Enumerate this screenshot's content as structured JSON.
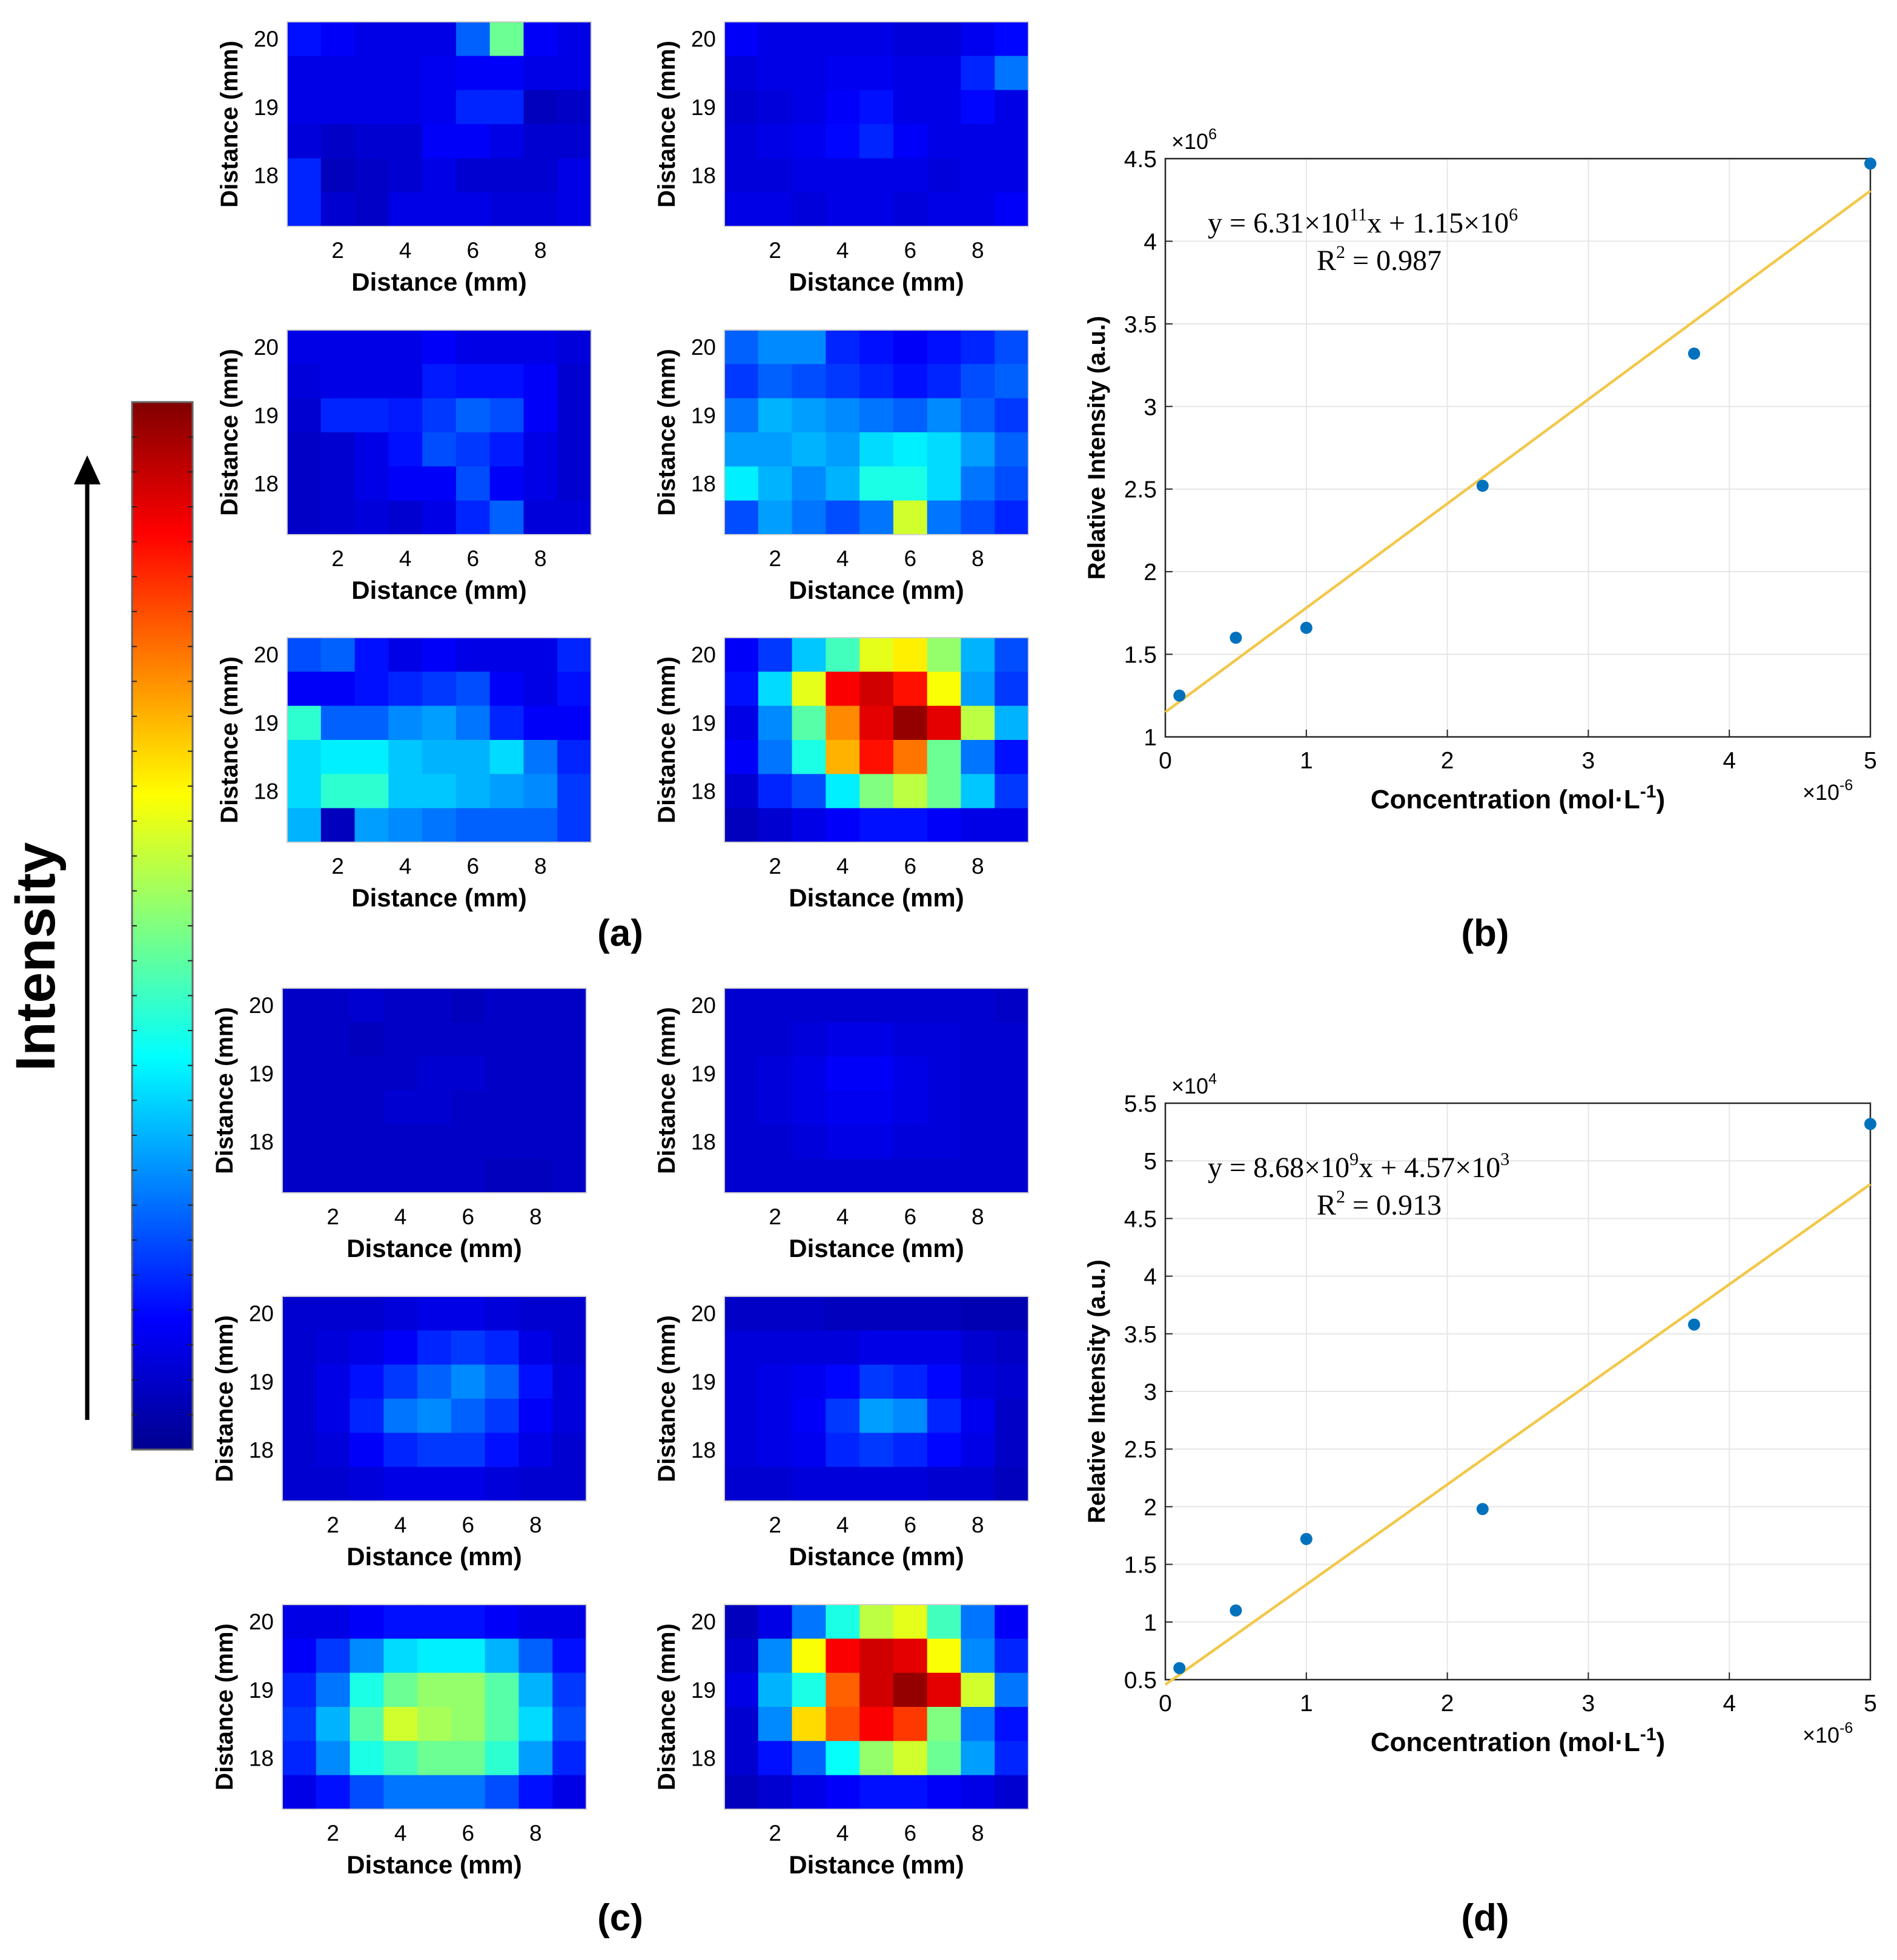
{
  "figure": {
    "intensity_label": "Intensity",
    "panel_labels": [
      "(a)",
      "(b)",
      "(c)",
      "(d)"
    ]
  },
  "chart_data": [
    {
      "panel": "(a)",
      "type": "heatmap",
      "subplot_count": 6,
      "xlabel": "Distance (mm)",
      "ylabel": "Distance (mm)",
      "xticks": [
        2,
        4,
        6,
        8
      ],
      "yticks": [
        18,
        19,
        20
      ],
      "xlim": [
        0.5,
        9.5
      ],
      "ylim": [
        17.25,
        20.25
      ],
      "colormap": "jet",
      "grid_note": "9 columns x 6 rows per map, values normalized 0-1, rows listed top (y=20.25) to bottom (y=17.25)",
      "maps": [
        [
          [
            0.14,
            0.12,
            0.1,
            0.1,
            0.1,
            0.22,
            0.48,
            0.12,
            0.1
          ],
          [
            0.1,
            0.1,
            0.1,
            0.1,
            0.11,
            0.12,
            0.12,
            0.1,
            0.1
          ],
          [
            0.1,
            0.1,
            0.1,
            0.1,
            0.11,
            0.16,
            0.16,
            0.06,
            0.07
          ],
          [
            0.09,
            0.07,
            0.08,
            0.08,
            0.12,
            0.12,
            0.1,
            0.08,
            0.08
          ],
          [
            0.16,
            0.06,
            0.07,
            0.08,
            0.1,
            0.08,
            0.08,
            0.08,
            0.1
          ],
          [
            0.16,
            0.08,
            0.07,
            0.1,
            0.1,
            0.1,
            0.09,
            0.09,
            0.1
          ]
        ],
        [
          [
            0.12,
            0.1,
            0.1,
            0.1,
            0.1,
            0.09,
            0.09,
            0.11,
            0.13
          ],
          [
            0.09,
            0.1,
            0.1,
            0.11,
            0.11,
            0.1,
            0.1,
            0.16,
            0.24
          ],
          [
            0.08,
            0.09,
            0.1,
            0.12,
            0.14,
            0.1,
            0.1,
            0.13,
            0.1
          ],
          [
            0.09,
            0.1,
            0.11,
            0.13,
            0.16,
            0.12,
            0.1,
            0.1,
            0.1
          ],
          [
            0.09,
            0.09,
            0.1,
            0.1,
            0.1,
            0.1,
            0.09,
            0.1,
            0.1
          ],
          [
            0.1,
            0.1,
            0.09,
            0.1,
            0.1,
            0.09,
            0.1,
            0.1,
            0.12
          ]
        ],
        [
          [
            0.1,
            0.1,
            0.1,
            0.1,
            0.12,
            0.1,
            0.1,
            0.1,
            0.09
          ],
          [
            0.09,
            0.1,
            0.1,
            0.1,
            0.15,
            0.14,
            0.14,
            0.12,
            0.08
          ],
          [
            0.08,
            0.16,
            0.16,
            0.15,
            0.18,
            0.22,
            0.2,
            0.12,
            0.08
          ],
          [
            0.07,
            0.08,
            0.1,
            0.14,
            0.2,
            0.18,
            0.15,
            0.1,
            0.08
          ],
          [
            0.07,
            0.08,
            0.1,
            0.12,
            0.12,
            0.2,
            0.12,
            0.1,
            0.08
          ],
          [
            0.07,
            0.08,
            0.09,
            0.08,
            0.1,
            0.16,
            0.22,
            0.09,
            0.09
          ]
        ],
        [
          [
            0.22,
            0.26,
            0.26,
            0.16,
            0.14,
            0.12,
            0.14,
            0.16,
            0.2
          ],
          [
            0.18,
            0.22,
            0.2,
            0.18,
            0.16,
            0.14,
            0.16,
            0.2,
            0.22
          ],
          [
            0.24,
            0.3,
            0.28,
            0.26,
            0.24,
            0.22,
            0.26,
            0.22,
            0.18
          ],
          [
            0.28,
            0.28,
            0.3,
            0.28,
            0.34,
            0.36,
            0.34,
            0.28,
            0.22
          ],
          [
            0.36,
            0.3,
            0.26,
            0.3,
            0.4,
            0.4,
            0.34,
            0.24,
            0.2
          ],
          [
            0.2,
            0.28,
            0.24,
            0.2,
            0.24,
            0.58,
            0.24,
            0.2,
            0.16
          ]
        ],
        [
          [
            0.2,
            0.22,
            0.14,
            0.1,
            0.12,
            0.1,
            0.1,
            0.1,
            0.16
          ],
          [
            0.12,
            0.12,
            0.14,
            0.16,
            0.18,
            0.2,
            0.12,
            0.1,
            0.14
          ],
          [
            0.42,
            0.22,
            0.22,
            0.26,
            0.28,
            0.24,
            0.16,
            0.12,
            0.12
          ],
          [
            0.34,
            0.36,
            0.36,
            0.32,
            0.3,
            0.3,
            0.34,
            0.24,
            0.16
          ],
          [
            0.34,
            0.42,
            0.42,
            0.32,
            0.32,
            0.3,
            0.28,
            0.26,
            0.18
          ],
          [
            0.3,
            0.06,
            0.28,
            0.26,
            0.24,
            0.22,
            0.22,
            0.22,
            0.18
          ]
        ],
        [
          [
            0.12,
            0.18,
            0.32,
            0.44,
            0.6,
            0.64,
            0.52,
            0.3,
            0.2
          ],
          [
            0.14,
            0.34,
            0.6,
            0.88,
            0.92,
            0.86,
            0.62,
            0.28,
            0.18
          ],
          [
            0.1,
            0.26,
            0.46,
            0.74,
            0.9,
            0.98,
            0.9,
            0.56,
            0.3
          ],
          [
            0.12,
            0.24,
            0.4,
            0.7,
            0.86,
            0.76,
            0.48,
            0.24,
            0.14
          ],
          [
            0.08,
            0.16,
            0.2,
            0.36,
            0.5,
            0.56,
            0.48,
            0.32,
            0.18
          ],
          [
            0.06,
            0.08,
            0.1,
            0.12,
            0.14,
            0.14,
            0.12,
            0.1,
            0.1
          ]
        ]
      ]
    },
    {
      "panel": "(b)",
      "type": "scatter",
      "title": "",
      "xlabel": "Concentration (mol·L",
      "xlabel_sup": "-1",
      "xlabel_close": ")",
      "ylabel": "Relative Intensity (a.u.)",
      "x_multiplier": "×10",
      "x_multiplier_exp": "-6",
      "y_multiplier": "×10",
      "y_multiplier_exp": "6",
      "xlim": [
        0,
        5
      ],
      "ylim": [
        1,
        4.5
      ],
      "xticks": [
        0,
        1,
        2,
        3,
        4,
        5
      ],
      "yticks": [
        1,
        1.5,
        2,
        2.5,
        3,
        3.5,
        4,
        4.5
      ],
      "grid": true,
      "x": [
        0.1,
        0.5,
        1.0,
        2.25,
        3.75,
        5.0
      ],
      "y": [
        1.25,
        1.6,
        1.66,
        2.52,
        3.32,
        4.47
      ],
      "fit": {
        "slope": 0.631,
        "intercept": 1.15
      },
      "equation": {
        "pre": "y = 6.31×10",
        "exp1": "11",
        "mid": "x + 1.15×10",
        "exp2": "6"
      },
      "r2": {
        "pre": "R",
        "sup": "2",
        "post": " = 0.987"
      },
      "marker_color": "#0072BD",
      "line_color": "#F2C84B"
    },
    {
      "panel": "(c)",
      "type": "heatmap",
      "subplot_count": 6,
      "xlabel": "Distance (mm)",
      "ylabel": "Distance (mm)",
      "xticks": [
        2,
        4,
        6,
        8
      ],
      "yticks": [
        18,
        19,
        20
      ],
      "xlim": [
        0.5,
        9.5
      ],
      "ylim": [
        17.25,
        20.25
      ],
      "colormap": "jet",
      "grid_note": "9 columns x 6 rows per map, values normalized 0-1, rows listed top (y=20.25) to bottom (y=17.25)",
      "maps": [
        [
          [
            0.07,
            0.07,
            0.08,
            0.07,
            0.07,
            0.06,
            0.07,
            0.07,
            0.07
          ],
          [
            0.07,
            0.07,
            0.06,
            0.07,
            0.07,
            0.07,
            0.07,
            0.07,
            0.07
          ],
          [
            0.07,
            0.07,
            0.07,
            0.07,
            0.08,
            0.08,
            0.07,
            0.07,
            0.07
          ],
          [
            0.07,
            0.07,
            0.07,
            0.08,
            0.08,
            0.07,
            0.07,
            0.07,
            0.07
          ],
          [
            0.07,
            0.07,
            0.07,
            0.07,
            0.07,
            0.07,
            0.07,
            0.07,
            0.07
          ],
          [
            0.07,
            0.07,
            0.07,
            0.07,
            0.07,
            0.07,
            0.06,
            0.06,
            0.07
          ]
        ],
        [
          [
            0.08,
            0.08,
            0.08,
            0.08,
            0.08,
            0.08,
            0.08,
            0.08,
            0.07
          ],
          [
            0.08,
            0.08,
            0.09,
            0.1,
            0.1,
            0.09,
            0.09,
            0.08,
            0.08
          ],
          [
            0.08,
            0.09,
            0.1,
            0.12,
            0.12,
            0.1,
            0.09,
            0.08,
            0.08
          ],
          [
            0.08,
            0.09,
            0.1,
            0.11,
            0.11,
            0.1,
            0.09,
            0.08,
            0.08
          ],
          [
            0.08,
            0.08,
            0.09,
            0.1,
            0.1,
            0.09,
            0.09,
            0.08,
            0.08
          ],
          [
            0.08,
            0.08,
            0.08,
            0.08,
            0.08,
            0.08,
            0.08,
            0.08,
            0.08
          ]
        ],
        [
          [
            0.08,
            0.08,
            0.08,
            0.09,
            0.1,
            0.1,
            0.09,
            0.08,
            0.08
          ],
          [
            0.08,
            0.09,
            0.1,
            0.12,
            0.16,
            0.18,
            0.16,
            0.1,
            0.08
          ],
          [
            0.08,
            0.1,
            0.14,
            0.18,
            0.22,
            0.26,
            0.22,
            0.14,
            0.09
          ],
          [
            0.08,
            0.1,
            0.16,
            0.24,
            0.26,
            0.22,
            0.18,
            0.12,
            0.09
          ],
          [
            0.08,
            0.09,
            0.12,
            0.16,
            0.18,
            0.18,
            0.14,
            0.1,
            0.08
          ],
          [
            0.08,
            0.08,
            0.09,
            0.1,
            0.1,
            0.1,
            0.09,
            0.08,
            0.08
          ]
        ],
        [
          [
            0.07,
            0.07,
            0.07,
            0.06,
            0.06,
            0.06,
            0.06,
            0.05,
            0.05
          ],
          [
            0.09,
            0.09,
            0.09,
            0.09,
            0.1,
            0.1,
            0.1,
            0.08,
            0.07
          ],
          [
            0.09,
            0.1,
            0.11,
            0.13,
            0.18,
            0.16,
            0.13,
            0.09,
            0.08
          ],
          [
            0.09,
            0.1,
            0.12,
            0.18,
            0.28,
            0.26,
            0.16,
            0.11,
            0.07
          ],
          [
            0.09,
            0.1,
            0.11,
            0.16,
            0.18,
            0.16,
            0.13,
            0.1,
            0.07
          ],
          [
            0.08,
            0.08,
            0.09,
            0.09,
            0.09,
            0.09,
            0.08,
            0.08,
            0.06
          ]
        ],
        [
          [
            0.1,
            0.1,
            0.12,
            0.14,
            0.14,
            0.14,
            0.12,
            0.1,
            0.1
          ],
          [
            0.12,
            0.18,
            0.26,
            0.34,
            0.36,
            0.36,
            0.3,
            0.22,
            0.14
          ],
          [
            0.16,
            0.24,
            0.4,
            0.48,
            0.52,
            0.52,
            0.46,
            0.3,
            0.18
          ],
          [
            0.18,
            0.3,
            0.46,
            0.58,
            0.54,
            0.52,
            0.46,
            0.34,
            0.2
          ],
          [
            0.16,
            0.26,
            0.4,
            0.44,
            0.48,
            0.48,
            0.42,
            0.28,
            0.16
          ],
          [
            0.1,
            0.14,
            0.2,
            0.24,
            0.24,
            0.24,
            0.2,
            0.14,
            0.1
          ]
        ],
        [
          [
            0.06,
            0.1,
            0.24,
            0.4,
            0.56,
            0.6,
            0.44,
            0.24,
            0.12
          ],
          [
            0.08,
            0.26,
            0.62,
            0.88,
            0.92,
            0.9,
            0.62,
            0.26,
            0.16
          ],
          [
            0.1,
            0.3,
            0.4,
            0.78,
            0.92,
            0.98,
            0.9,
            0.58,
            0.24
          ],
          [
            0.08,
            0.26,
            0.66,
            0.8,
            0.88,
            0.82,
            0.5,
            0.24,
            0.14
          ],
          [
            0.08,
            0.14,
            0.22,
            0.38,
            0.52,
            0.58,
            0.48,
            0.28,
            0.16
          ],
          [
            0.06,
            0.08,
            0.1,
            0.12,
            0.14,
            0.14,
            0.12,
            0.1,
            0.08
          ]
        ]
      ]
    },
    {
      "panel": "(d)",
      "type": "scatter",
      "title": "",
      "xlabel": "Concentration (mol·L",
      "xlabel_sup": "-1",
      "xlabel_close": ")",
      "ylabel": "Relative Intensity (a.u.)",
      "x_multiplier": "×10",
      "x_multiplier_exp": "-6",
      "y_multiplier": "×10",
      "y_multiplier_exp": "4",
      "xlim": [
        0,
        5
      ],
      "ylim": [
        0.5,
        5.5
      ],
      "xticks": [
        0,
        1,
        2,
        3,
        4,
        5
      ],
      "yticks": [
        0.5,
        1,
        1.5,
        2,
        2.5,
        3,
        3.5,
        4,
        4.5,
        5,
        5.5
      ],
      "grid": true,
      "x": [
        0.1,
        0.5,
        1.0,
        2.25,
        3.75,
        5.0
      ],
      "y": [
        0.6,
        1.1,
        1.72,
        1.98,
        3.58,
        5.32
      ],
      "fit": {
        "slope": 0.868,
        "intercept": 0.457
      },
      "equation": {
        "pre": "y = 8.68×10",
        "exp1": "9",
        "mid": "x + 4.57×10",
        "exp2": "3"
      },
      "r2": {
        "pre": "R",
        "sup": "2",
        "post": " = 0.913"
      },
      "marker_color": "#0072BD",
      "line_color": "#F2C84B"
    }
  ]
}
